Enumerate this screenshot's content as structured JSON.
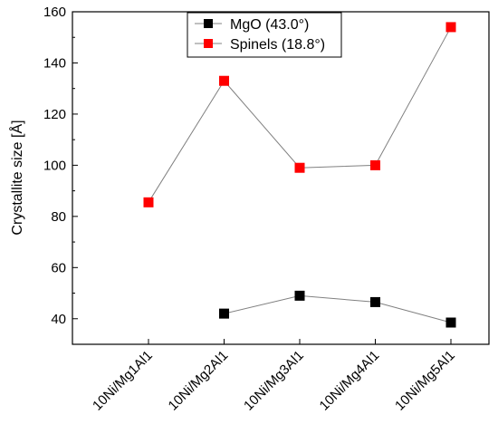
{
  "chart_data": {
    "type": "line",
    "categories": [
      "10Ni/Mg1Al1",
      "10Ni/Mg2Al1",
      "10Ni/Mg3Al1",
      "10Ni/Mg4Al1",
      "10Ni/Mg5Al1"
    ],
    "series": [
      {
        "name": "MgO (43.0°)",
        "color": "#000000",
        "values": [
          null,
          42,
          49,
          46.5,
          38.5
        ]
      },
      {
        "name": "Spinels (18.8°)",
        "color": "#ff0000",
        "values": [
          85.5,
          133,
          99,
          100,
          154
        ]
      }
    ],
    "ylabel": "Crystallite size [Å]",
    "xlabel": "",
    "ylim": [
      30,
      160
    ],
    "yticks": [
      40,
      60,
      80,
      100,
      120,
      140,
      160
    ],
    "legend_position": "top-center",
    "grid": false
  }
}
